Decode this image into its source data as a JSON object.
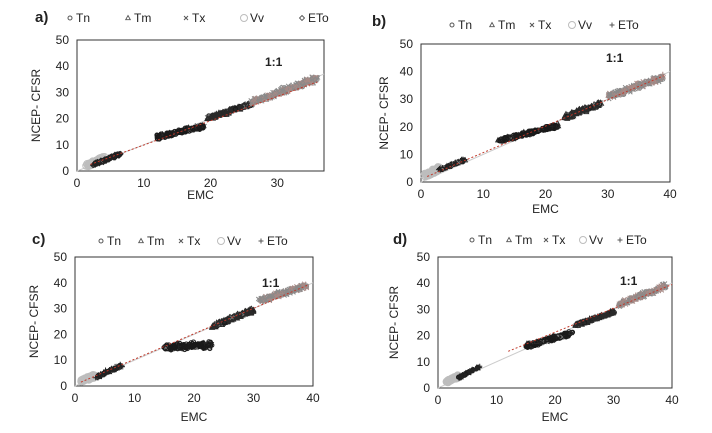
{
  "chart_data": [
    {
      "type": "scatter",
      "panel_label": "a)",
      "xlabel": "EMC",
      "ylabel": "NCEP- CFSR",
      "xlim": [
        0,
        37
      ],
      "ylim": [
        0,
        50
      ],
      "xticks": [
        "0",
        "10",
        "20",
        "30"
      ],
      "yticks": [
        "0",
        "10",
        "20",
        "30",
        "40",
        "50"
      ],
      "annotation": "1:1",
      "legend_position": "top",
      "legend": [
        {
          "name": "Tn",
          "marker": "circle-small"
        },
        {
          "name": "Tm",
          "marker": "triangle"
        },
        {
          "name": "Tx",
          "marker": "x"
        },
        {
          "name": "Vv",
          "marker": "circle-large"
        },
        {
          "name": "ETo",
          "marker": "diamond"
        }
      ],
      "clusters": [
        {
          "series": "Vv",
          "x": [
            1.5,
            4
          ],
          "y": [
            2,
            5
          ],
          "spread": 0.8
        },
        {
          "series": "ETo",
          "x": [
            2.5,
            6.5
          ],
          "y": [
            2.5,
            6.5
          ],
          "spread": 0.6
        },
        {
          "series": "Tn",
          "x": [
            12,
            19
          ],
          "y": [
            13,
            17
          ],
          "spread": 1.2
        },
        {
          "series": "Tm",
          "x": [
            19.5,
            26
          ],
          "y": [
            20,
            25.5
          ],
          "spread": 1.0
        },
        {
          "series": "Tx",
          "x": [
            26,
            36
          ],
          "y": [
            26,
            35.5
          ],
          "spread": 1.6
        }
      ],
      "trend_line": {
        "x": [
          2,
          36
        ],
        "y": [
          2.5,
          34
        ]
      },
      "identity_line": true,
      "grid": false
    },
    {
      "type": "scatter",
      "panel_label": "b)",
      "xlabel": "EMC",
      "ylabel": "NCEP- CFSR",
      "xlim": [
        0,
        40
      ],
      "ylim": [
        0,
        50
      ],
      "xticks": [
        "0",
        "10",
        "20",
        "30",
        "40"
      ],
      "yticks": [
        "0",
        "10",
        "20",
        "30",
        "40",
        "50"
      ],
      "annotation": "1:1",
      "legend_position": "top",
      "legend": [
        {
          "name": "Tn",
          "marker": "circle-small"
        },
        {
          "name": "Tm",
          "marker": "triangle"
        },
        {
          "name": "Tx",
          "marker": "x"
        },
        {
          "name": "Vv",
          "marker": "circle-large"
        },
        {
          "name": "ETo",
          "marker": "plus"
        }
      ],
      "clusters": [
        {
          "series": "Vv",
          "x": [
            0.5,
            3
          ],
          "y": [
            2,
            5
          ],
          "spread": 1.0
        },
        {
          "series": "ETo",
          "x": [
            3,
            7
          ],
          "y": [
            4.5,
            8
          ],
          "spread": 0.7
        },
        {
          "series": "Tn",
          "x": [
            12.5,
            22
          ],
          "y": [
            15,
            20.5
          ],
          "spread": 1.0
        },
        {
          "series": "Tm",
          "x": [
            23,
            29
          ],
          "y": [
            23.5,
            28.5
          ],
          "spread": 1.2
        },
        {
          "series": "Tx",
          "x": [
            30,
            39
          ],
          "y": [
            31,
            38
          ],
          "spread": 1.5
        }
      ],
      "trend_line": {
        "x": [
          1,
          39
        ],
        "y": [
          2,
          38.5
        ]
      },
      "identity_line": true,
      "grid": false
    },
    {
      "type": "scatter",
      "panel_label": "c)",
      "xlabel": "EMC",
      "ylabel": "NCEP- CFSR",
      "xlim": [
        0,
        40
      ],
      "ylim": [
        0,
        50
      ],
      "xticks": [
        "0",
        "10",
        "20",
        "30",
        "40"
      ],
      "yticks": [
        "0",
        "10",
        "20",
        "30",
        "40",
        "50"
      ],
      "annotation": "1:1",
      "legend_position": "top",
      "legend": [
        {
          "name": "Tn",
          "marker": "circle-small"
        },
        {
          "name": "Tm",
          "marker": "triangle"
        },
        {
          "name": "Tx",
          "marker": "x"
        },
        {
          "name": "Vv",
          "marker": "circle-large"
        },
        {
          "name": "ETo",
          "marker": "plus"
        }
      ],
      "clusters": [
        {
          "series": "Vv",
          "x": [
            1,
            3.5
          ],
          "y": [
            2,
            4
          ],
          "spread": 0.8
        },
        {
          "series": "ETo",
          "x": [
            3.5,
            8
          ],
          "y": [
            3.5,
            8
          ],
          "spread": 1.0
        },
        {
          "series": "Tn",
          "x": [
            15,
            23
          ],
          "y": [
            15,
            16
          ],
          "spread": 1.6
        },
        {
          "series": "Tm",
          "x": [
            23,
            30
          ],
          "y": [
            23,
            29.5
          ],
          "spread": 1.2
        },
        {
          "series": "Tx",
          "x": [
            31,
            39
          ],
          "y": [
            33,
            39
          ],
          "spread": 1.5
        }
      ],
      "trend_line": {
        "x": [
          1,
          39
        ],
        "y": [
          1.5,
          39
        ]
      },
      "identity_line": true,
      "grid": false
    },
    {
      "type": "scatter",
      "panel_label": "d)",
      "xlabel": "EMC",
      "ylabel": "NCEP- CFSR",
      "xlim": [
        0,
        40
      ],
      "ylim": [
        0,
        50
      ],
      "xticks": [
        "0",
        "10",
        "20",
        "30",
        "40"
      ],
      "yticks": [
        "0",
        "10",
        "20",
        "30",
        "40",
        "50"
      ],
      "annotation": "1:1",
      "legend_position": "top",
      "legend": [
        {
          "name": "Tn",
          "marker": "circle-small"
        },
        {
          "name": "Tm",
          "marker": "triangle"
        },
        {
          "name": "Tx",
          "marker": "x"
        },
        {
          "name": "Vv",
          "marker": "circle-large"
        },
        {
          "name": "ETo",
          "marker": "plus"
        }
      ],
      "clusters": [
        {
          "series": "Vv",
          "x": [
            1.5,
            3.5
          ],
          "y": [
            2.5,
            4.5
          ],
          "spread": 0.6
        },
        {
          "series": "ETo",
          "x": [
            3.5,
            7
          ],
          "y": [
            4,
            8
          ],
          "spread": 0.6
        },
        {
          "series": "Tn",
          "x": [
            15,
            23
          ],
          "y": [
            16,
            21
          ],
          "spread": 1.2
        },
        {
          "series": "Tm",
          "x": [
            23.5,
            30
          ],
          "y": [
            24,
            29
          ],
          "spread": 0.8
        },
        {
          "series": "Tx",
          "x": [
            31,
            39
          ],
          "y": [
            32,
            39
          ],
          "spread": 1.4
        }
      ],
      "trend_line": {
        "x": [
          12,
          40
        ],
        "y": [
          14,
          39.5
        ]
      },
      "identity_line": true,
      "grid": false
    }
  ],
  "colors": {
    "Tn": "#1a1a1a",
    "Tm": "#2a2a2a",
    "Tx": "#7a7a7a",
    "Vv": "#bdbdbd",
    "ETo": "#222222",
    "trend": "#c0392b",
    "identity": "#cccccc"
  }
}
